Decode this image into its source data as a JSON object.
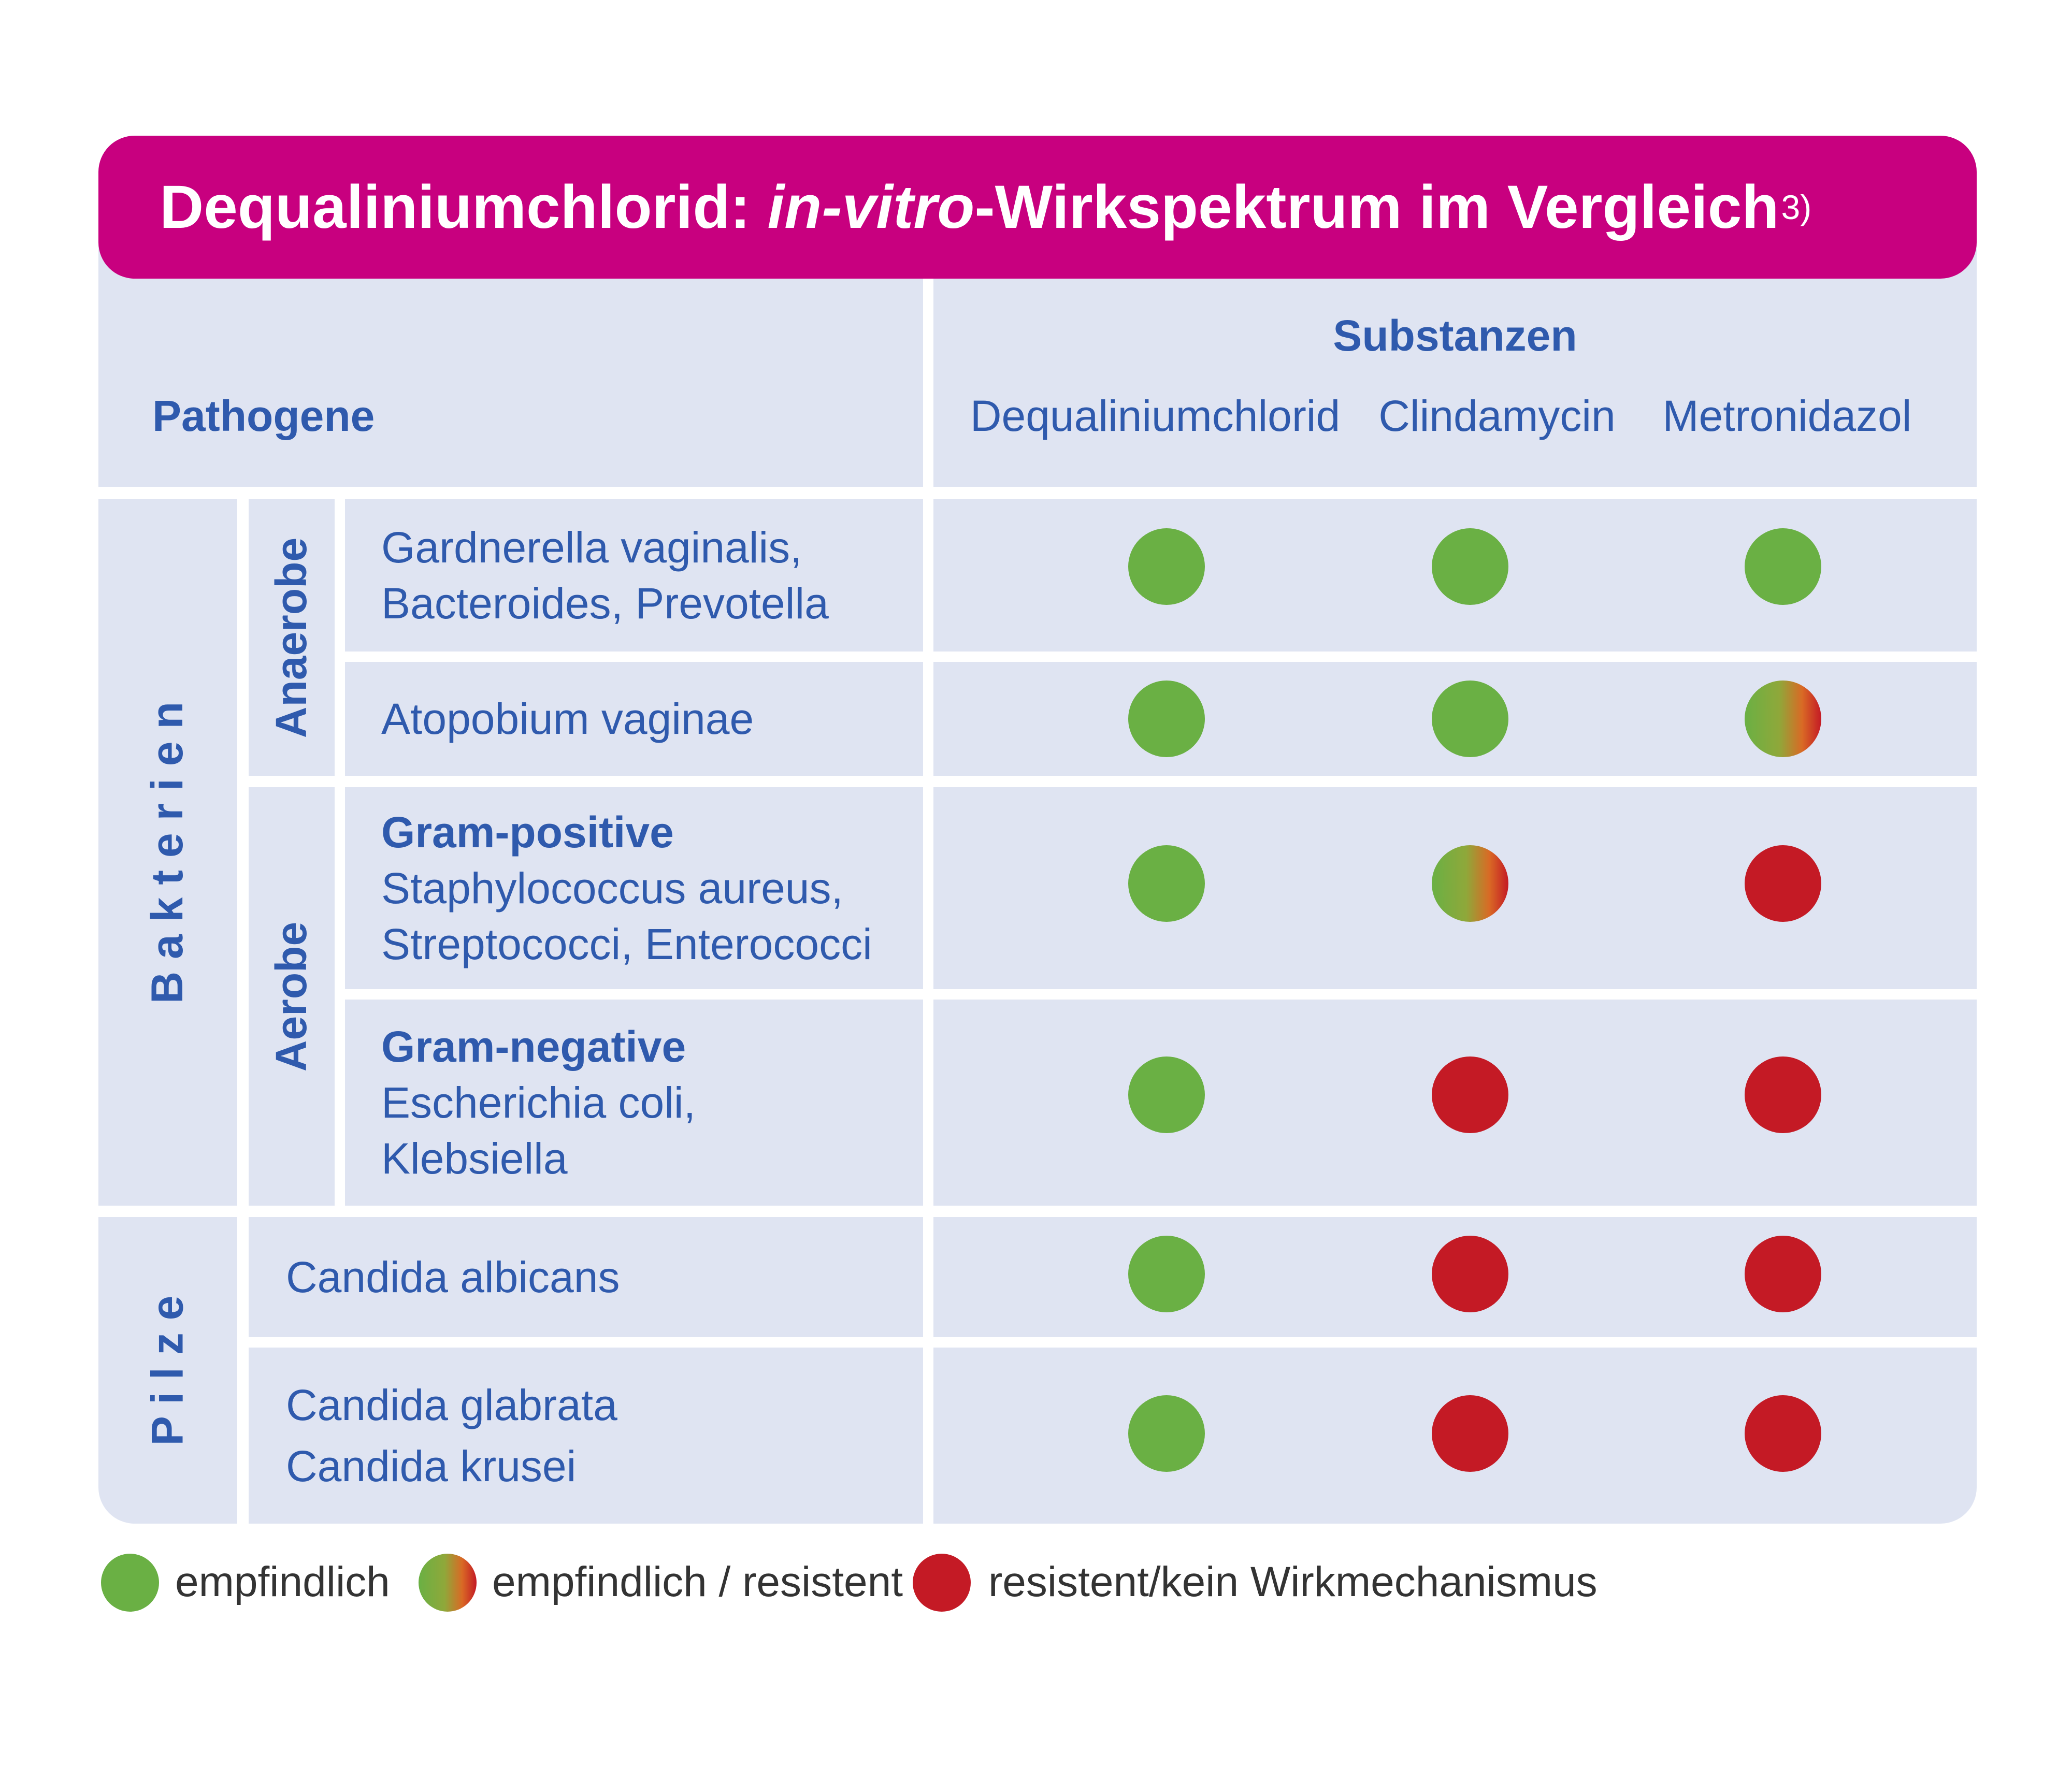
{
  "title": {
    "prefix": "Dequaliniumchlorid: ",
    "italic": "in-vitro",
    "suffix": "-Wirkspektrum im Vergleich",
    "reference": "3)"
  },
  "header": {
    "pathogens_label": "Pathogene",
    "substances_label": "Substanzen",
    "substances": [
      "Dequaliniumchlorid",
      "Clindamycin",
      "Metronidazol"
    ]
  },
  "groups": {
    "bakterien": "B a k t e r i e n",
    "pilze": "P i l z e",
    "anaerobe": "Anaerobe",
    "aerobe": "Aerobe"
  },
  "rows": [
    {
      "line1": "Gardnerella vaginalis,",
      "line2": "Bacteroides, Prevotella",
      "results": [
        "empfindlich",
        "empfindlich",
        "empfindlich"
      ]
    },
    {
      "line1": "Atopobium vaginae",
      "results": [
        "empfindlich",
        "empfindlich",
        "empfindlich/resistent"
      ]
    },
    {
      "bold": "Gram-positive",
      "line1": "Staphylococcus aureus,",
      "line2": "Streptococci, Enterococci",
      "results": [
        "empfindlich",
        "empfindlich/resistent",
        "resistent/kein Wirkmechanismus"
      ]
    },
    {
      "bold": "Gram-negative",
      "line1": "Escherichia coli,",
      "line2": "Klebsiella",
      "results": [
        "empfindlich",
        "resistent/kein Wirkmechanismus",
        "resistent/kein Wirkmechanismus"
      ]
    },
    {
      "line1": "Candida albicans",
      "results": [
        "empfindlich",
        "resistent/kein Wirkmechanismus",
        "resistent/kein Wirkmechanismus"
      ]
    },
    {
      "line1": "Candida glabrata",
      "line2": "Candida krusei",
      "results": [
        "empfindlich",
        "resistent/kein Wirkmechanismus",
        "resistent/kein Wirkmechanismus"
      ]
    }
  ],
  "legend": [
    {
      "label": "empfindlich",
      "status": "green"
    },
    {
      "label": "empfindlich / resistent",
      "status": "mixed"
    },
    {
      "label": "resistent/kein Wirkmechanismus",
      "status": "red"
    }
  ],
  "colors": {
    "title_bar": "#c8007f",
    "cell_background": "#dfe4f2",
    "text_blue": "#2f5aad",
    "green": "#6ab044",
    "red": "#c41a25"
  }
}
